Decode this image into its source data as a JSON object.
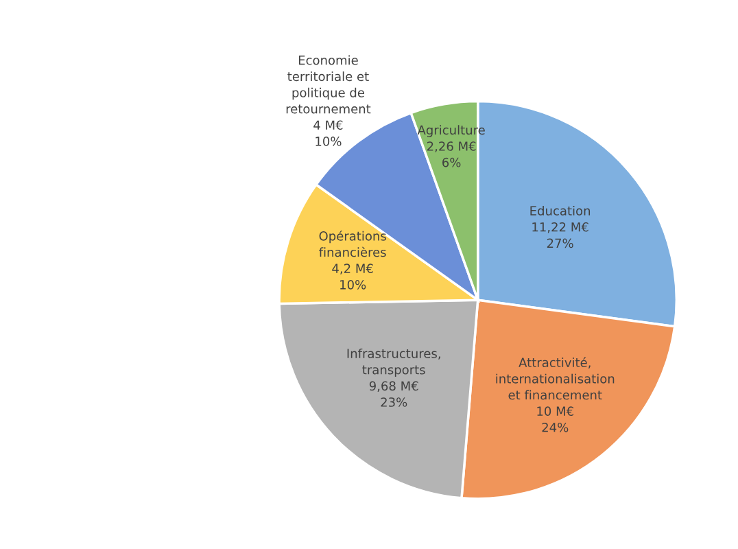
{
  "chart_data": {
    "type": "pie",
    "categories": [
      "Education",
      "Attractivité,\ninternationalisation\net financement",
      "Infrastructures,\ntransports",
      "Opérations\nfinancières",
      "Economie\nterritoriale et\npolitique de\nretournement",
      "Agriculture"
    ],
    "values": [
      11.22,
      10,
      9.68,
      4.2,
      4,
      2.26
    ],
    "value_labels": [
      "11,22 M€\n27%",
      "10 M€\n24%",
      "9,68 M€\n23%",
      "4,2 M€\n10%",
      "4 M€\n10%",
      "2,26 M€\n6%"
    ],
    "colors": [
      "#7fb0e0",
      "#f0955a",
      "#b4b4b4",
      "#fdd257",
      "#6b8fd8",
      "#8cc06c"
    ],
    "legend": false
  }
}
